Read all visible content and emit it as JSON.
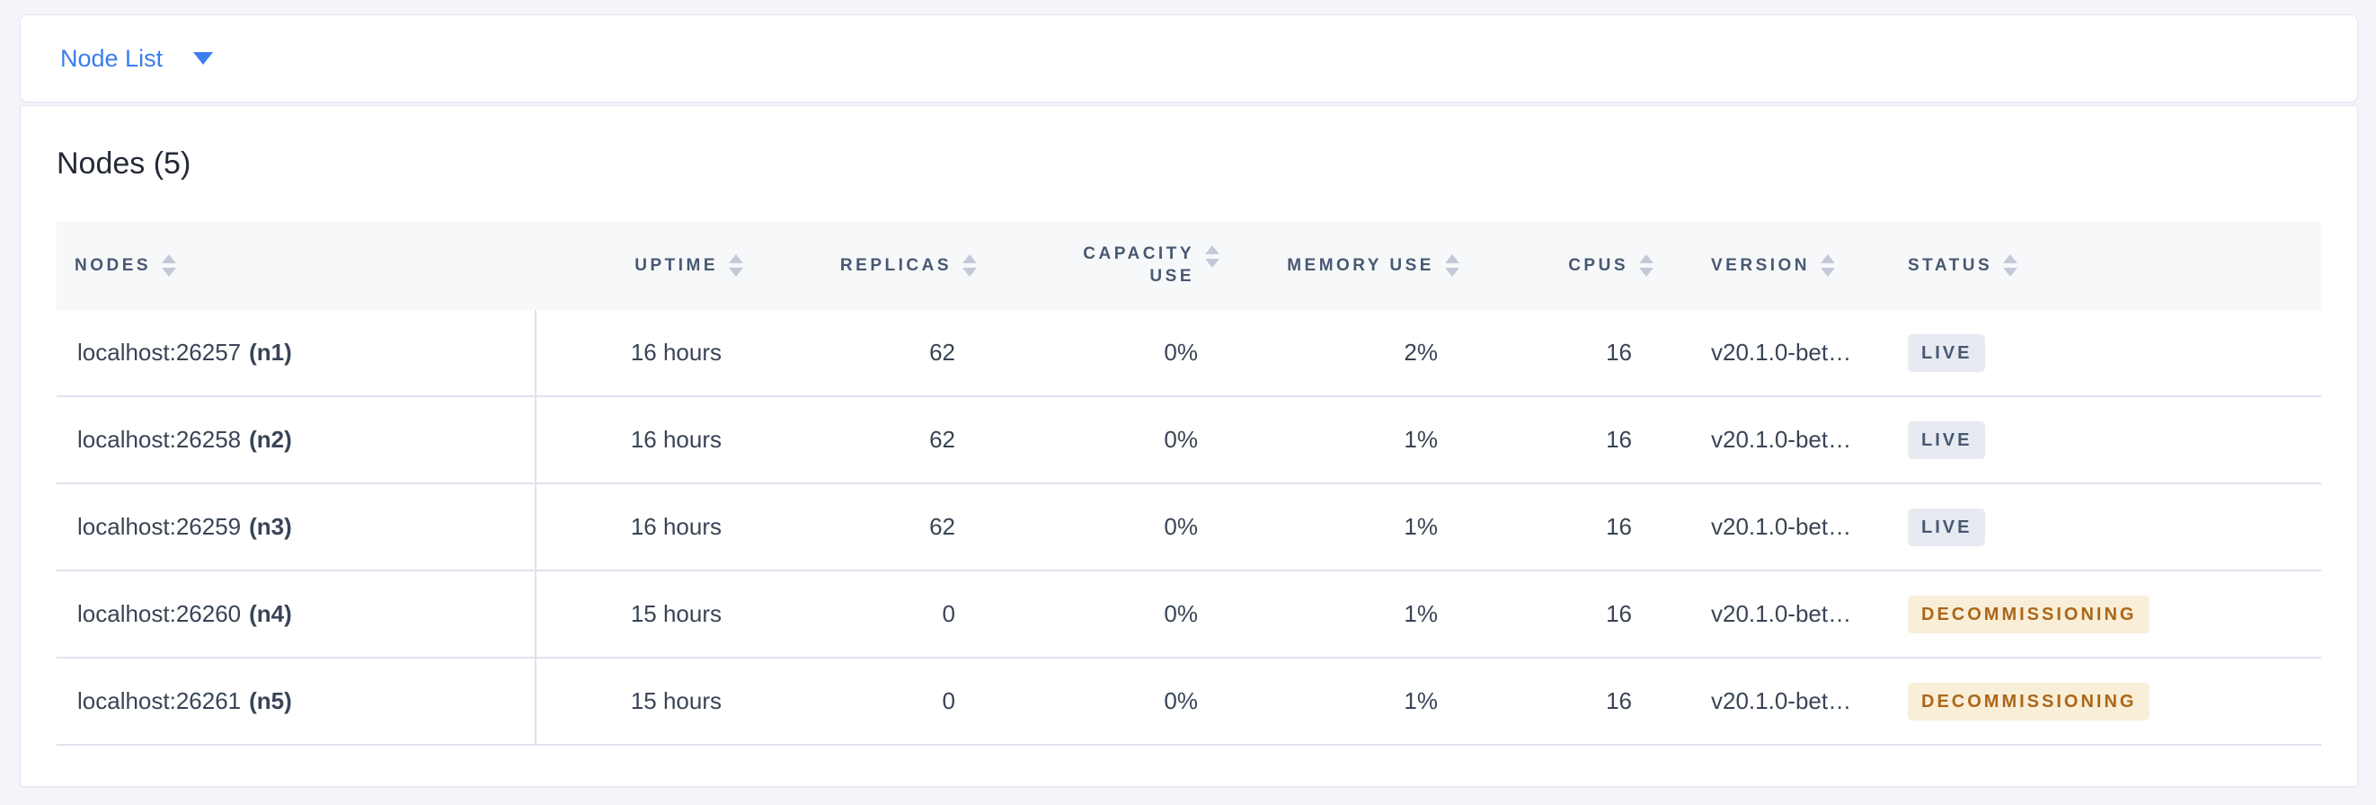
{
  "colors": {
    "accent_blue": "#3B7DEF",
    "page_background": "#F4F5FA",
    "header_row_background": "#F7F8FA",
    "live_badge_background": "#E7EAF1",
    "live_badge_text": "#475872",
    "decommissioning_badge_background": "#F9EFD8",
    "decommissioning_badge_text": "#AC6619"
  },
  "view_switcher": {
    "label": "Node List",
    "icon": "caret-down-icon"
  },
  "nodes": {
    "title": "Nodes (5)",
    "columns": [
      {
        "label": "NODES"
      },
      {
        "label": "UPTIME"
      },
      {
        "label": "REPLICAS"
      },
      {
        "label": "CAPACITY USE"
      },
      {
        "label": "MEMORY USE"
      },
      {
        "label": "CPUS"
      },
      {
        "label": "VERSION"
      },
      {
        "label": "STATUS"
      }
    ],
    "rows": [
      {
        "address": "localhost:26257",
        "id": "(n1)",
        "uptime": "16 hours",
        "replicas": "62",
        "capacity_use": "0%",
        "memory_use": "2%",
        "cpus": "16",
        "version": "v20.1.0-bet…",
        "status": "LIVE"
      },
      {
        "address": "localhost:26258",
        "id": "(n2)",
        "uptime": "16 hours",
        "replicas": "62",
        "capacity_use": "0%",
        "memory_use": "1%",
        "cpus": "16",
        "version": "v20.1.0-bet…",
        "status": "LIVE"
      },
      {
        "address": "localhost:26259",
        "id": "(n3)",
        "uptime": "16 hours",
        "replicas": "62",
        "capacity_use": "0%",
        "memory_use": "1%",
        "cpus": "16",
        "version": "v20.1.0-bet…",
        "status": "LIVE"
      },
      {
        "address": "localhost:26260",
        "id": "(n4)",
        "uptime": "15 hours",
        "replicas": "0",
        "capacity_use": "0%",
        "memory_use": "1%",
        "cpus": "16",
        "version": "v20.1.0-bet…",
        "status": "DECOMMISSIONING"
      },
      {
        "address": "localhost:26261",
        "id": "(n5)",
        "uptime": "15 hours",
        "replicas": "0",
        "capacity_use": "0%",
        "memory_use": "1%",
        "cpus": "16",
        "version": "v20.1.0-bet…",
        "status": "DECOMMISSIONING"
      }
    ]
  }
}
